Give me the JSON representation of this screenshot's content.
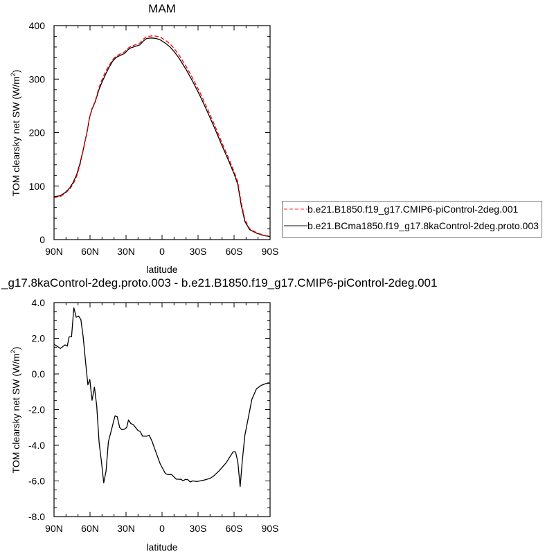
{
  "chart_data": [
    {
      "type": "line",
      "title": "MAM",
      "xlabel": "latitude",
      "ylabel": "TOM clearsky net SW (W/m",
      "ylabel_sup": "2",
      "ylabel_end": ")",
      "xlim": [
        90,
        -90
      ],
      "ylim": [
        0,
        400
      ],
      "xticks": [
        90,
        60,
        30,
        0,
        -30,
        -60,
        -90
      ],
      "xtick_labels": [
        "90N",
        "60N",
        "30N",
        "0",
        "30S",
        "60S",
        "90S"
      ],
      "yticks": [
        0,
        100,
        200,
        300,
        400
      ],
      "ytick_labels": [
        "0",
        "100",
        "200",
        "300",
        "400"
      ],
      "grid": false,
      "legend_placement": "right",
      "series": [
        {
          "name": "b.e21.B1850.f19_g17.CMIP6-piControl-2deg.001",
          "color": "#ff0000",
          "dash": "dashed",
          "x": [
            90,
            84.7,
            80.9,
            77,
            74,
            71.1,
            68.2,
            65.3,
            62.4,
            60.4,
            58.5,
            55.6,
            52.6,
            49.7,
            46.8,
            43.9,
            41,
            38,
            34.2,
            31.2,
            28.3,
            26.4,
            22.5,
            18.6,
            15.7,
            12.8,
            8.9,
            5,
            1.1,
            -2.8,
            -6.7,
            -10.6,
            -14.5,
            -20.3,
            -26.2,
            -32,
            -37.8,
            -43.7,
            -49.5,
            -55.4,
            -60.2,
            -63.1,
            -66,
            -69,
            -72.9,
            -78.7,
            -84.5,
            -90
          ],
          "y": [
            78.6,
            80.7,
            86.1,
            94.4,
            103.5,
            118.8,
            140.9,
            170.2,
            201.8,
            228.3,
            244.4,
            259.2,
            283.9,
            301.2,
            315.4,
            326.4,
            336.8,
            343.4,
            348,
            351.1,
            357.7,
            360.8,
            364,
            367.3,
            374.5,
            379.5,
            380.7,
            380.4,
            378.1,
            372.6,
            365.7,
            355.9,
            343.9,
            322.9,
            299,
            273,
            244.9,
            214.7,
            183.2,
            152.6,
            126.3,
            107.9,
            69.5,
            37.4,
            20.7,
            12.9,
            8.4,
            6.1
          ]
        },
        {
          "name": "b.e21.BCma1850.f19_g17.8kaControl-2deg.proto.003",
          "color": "#000000",
          "dash": "solid",
          "x": [
            90,
            84.7,
            80.9,
            77,
            74,
            71.1,
            68.2,
            65.3,
            62.4,
            60.4,
            58.5,
            55.6,
            52.6,
            49.7,
            46.8,
            43.9,
            41,
            38,
            34.2,
            31.2,
            28.3,
            26.4,
            22.5,
            18.6,
            15.7,
            12.8,
            8.9,
            5,
            1.1,
            -2.8,
            -6.7,
            -10.6,
            -14.5,
            -20.3,
            -26.2,
            -32,
            -37.8,
            -43.7,
            -49.5,
            -55.4,
            -60.2,
            -63.1,
            -66,
            -69,
            -72.9,
            -78.7,
            -84.5,
            -90
          ],
          "y": [
            80.3,
            82.1,
            87.7,
            96.3,
            107,
            122,
            144,
            172,
            202,
            228,
            243,
            258,
            280,
            296,
            310,
            323,
            334,
            341,
            345,
            348,
            355,
            358,
            361,
            364,
            371,
            376,
            377,
            376,
            373,
            367,
            360,
            350,
            338,
            317,
            293,
            267,
            239,
            209,
            178,
            148,
            122,
            103,
            64,
            34,
            18.6,
            12.1,
            7.8,
            5.6
          ]
        }
      ]
    },
    {
      "type": "line",
      "title": "_g17.8kaControl-2deg.proto.003 - b.e21.B1850.f19_g17.CMIP6-piControl-2deg.001",
      "xlabel": "latitude",
      "ylabel": "TOM clearsky net SW (W/m",
      "ylabel_sup": "2",
      "ylabel_end": ")",
      "xlim": [
        90,
        -90
      ],
      "ylim": [
        -8,
        4
      ],
      "xticks": [
        90,
        60,
        30,
        0,
        -30,
        -60,
        -90
      ],
      "xtick_labels": [
        "90N",
        "60N",
        "30N",
        "0",
        "30S",
        "60S",
        "90S"
      ],
      "yticks": [
        4,
        2,
        0,
        -2,
        -4,
        -6,
        -8
      ],
      "ytick_labels": [
        "4.0",
        "2.0",
        "0.0",
        "-2.0",
        "-4.0",
        "-6.0",
        "-8.0"
      ],
      "grid": false,
      "series": [
        {
          "color": "#000000",
          "x": [
            90,
            84.7,
            80.9,
            78.9,
            77.4,
            75.4,
            73.5,
            71.5,
            69.6,
            67.6,
            65.7,
            63.7,
            61.8,
            60.2,
            58.3,
            56.3,
            54.4,
            52.4,
            50.5,
            48.6,
            46.6,
            44.7,
            39.2,
            37.3,
            35.3,
            33.4,
            31.4,
            29.5,
            27.9,
            26,
            24,
            22.1,
            20.1,
            18.2,
            16.2,
            12.7,
            10.8,
            8.5,
            5,
            1.5,
            -2.8,
            -4.7,
            -7.9,
            -11.8,
            -15.7,
            -17.6,
            -19.5,
            -21.5,
            -23.4,
            -25.4,
            -29.3,
            -35.1,
            -39.8,
            -42.9,
            -47.6,
            -53.4,
            -59.2,
            -61.2,
            -63.1,
            -65.1,
            -67,
            -69,
            -71.9,
            -74.8,
            -78.7,
            -82.6,
            -86.5,
            -90
          ],
          "y": [
            1.67,
            1.43,
            1.63,
            1.56,
            2.08,
            2.08,
            3.71,
            3.18,
            3.25,
            3.05,
            2.08,
            0.66,
            -0.61,
            -0.31,
            -1.48,
            -0.74,
            -1.81,
            -3.88,
            -4.92,
            -6.11,
            -5.43,
            -3.81,
            -2.35,
            -2.4,
            -3.0,
            -3.13,
            -3.1,
            -3.0,
            -2.58,
            -2.78,
            -2.84,
            -3.0,
            -3.17,
            -3.23,
            -3.49,
            -3.49,
            -3.43,
            -3.75,
            -4.4,
            -5.05,
            -5.59,
            -5.64,
            -5.64,
            -5.9,
            -5.91,
            -5.99,
            -5.91,
            -5.93,
            -6.06,
            -6.0,
            -6.03,
            -5.95,
            -5.86,
            -5.73,
            -5.43,
            -4.98,
            -4.37,
            -4.37,
            -4.92,
            -6.32,
            -4.79,
            -3.44,
            -2.45,
            -1.42,
            -0.83,
            -0.64,
            -0.54,
            -0.51
          ]
        }
      ]
    }
  ]
}
